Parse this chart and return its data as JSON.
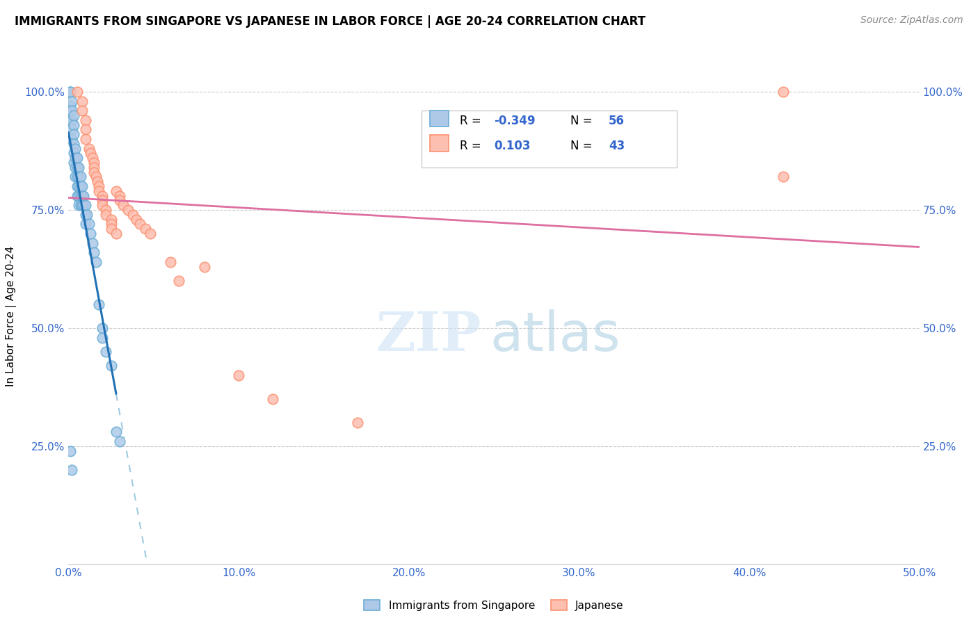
{
  "title": "IMMIGRANTS FROM SINGAPORE VS JAPANESE IN LABOR FORCE | AGE 20-24 CORRELATION CHART",
  "source": "Source: ZipAtlas.com",
  "ylabel": "In Labor Force | Age 20-24",
  "xlim": [
    0.0,
    0.5
  ],
  "ylim": [
    0.0,
    1.05
  ],
  "xtick_labels": [
    "0.0%",
    "10.0%",
    "20.0%",
    "30.0%",
    "40.0%",
    "50.0%"
  ],
  "xtick_values": [
    0.0,
    0.1,
    0.2,
    0.3,
    0.4,
    0.5
  ],
  "ytick_labels": [
    "",
    "25.0%",
    "50.0%",
    "75.0%",
    "100.0%"
  ],
  "ytick_values": [
    0.0,
    0.25,
    0.5,
    0.75,
    1.0
  ],
  "legend_r1_label": "R = ",
  "legend_r1_val": "-0.349",
  "legend_n1_label": "N = ",
  "legend_n1_val": "56",
  "legend_r2_label": "R =  ",
  "legend_r2_val": "0.103",
  "legend_n2_label": "N = ",
  "legend_n2_val": "43",
  "color_sg_edge": "#6baed6",
  "color_sg_fill": "#aec9e8",
  "color_jp_edge": "#fc9272",
  "color_jp_fill": "#fdbfb0",
  "color_sg_line": "#2171b5",
  "color_jp_line": "#de6fa1",
  "color_sg_dash": "#9ecae1",
  "watermark_zip": "ZIP",
  "watermark_atlas": "atlas",
  "sg_x": [
    0.001,
    0.001,
    0.001,
    0.001,
    0.002,
    0.002,
    0.002,
    0.002,
    0.002,
    0.003,
    0.003,
    0.003,
    0.003,
    0.003,
    0.003,
    0.004,
    0.004,
    0.004,
    0.004,
    0.005,
    0.005,
    0.005,
    0.005,
    0.005,
    0.006,
    0.006,
    0.006,
    0.006,
    0.006,
    0.007,
    0.007,
    0.007,
    0.007,
    0.008,
    0.008,
    0.008,
    0.009,
    0.009,
    0.01,
    0.01,
    0.01,
    0.011,
    0.012,
    0.013,
    0.014,
    0.015,
    0.016,
    0.018,
    0.02,
    0.02,
    0.022,
    0.025,
    0.028,
    0.03,
    0.001,
    0.002
  ],
  "sg_y": [
    1.0,
    1.0,
    0.97,
    0.94,
    0.98,
    0.96,
    0.94,
    0.92,
    0.9,
    0.95,
    0.93,
    0.91,
    0.89,
    0.87,
    0.85,
    0.88,
    0.86,
    0.84,
    0.82,
    0.86,
    0.84,
    0.82,
    0.8,
    0.78,
    0.84,
    0.82,
    0.8,
    0.78,
    0.76,
    0.82,
    0.8,
    0.78,
    0.76,
    0.8,
    0.78,
    0.76,
    0.78,
    0.76,
    0.76,
    0.74,
    0.72,
    0.74,
    0.72,
    0.7,
    0.68,
    0.66,
    0.64,
    0.55,
    0.5,
    0.48,
    0.45,
    0.42,
    0.28,
    0.26,
    0.24,
    0.2
  ],
  "jp_x": [
    0.005,
    0.008,
    0.008,
    0.01,
    0.01,
    0.01,
    0.012,
    0.013,
    0.014,
    0.015,
    0.015,
    0.015,
    0.016,
    0.017,
    0.018,
    0.018,
    0.02,
    0.02,
    0.02,
    0.022,
    0.022,
    0.025,
    0.025,
    0.025,
    0.028,
    0.028,
    0.03,
    0.03,
    0.032,
    0.035,
    0.038,
    0.04,
    0.042,
    0.045,
    0.048,
    0.06,
    0.065,
    0.08,
    0.1,
    0.12,
    0.17,
    0.42,
    0.42
  ],
  "jp_y": [
    1.0,
    0.98,
    0.96,
    0.94,
    0.92,
    0.9,
    0.88,
    0.87,
    0.86,
    0.85,
    0.84,
    0.83,
    0.82,
    0.81,
    0.8,
    0.79,
    0.78,
    0.77,
    0.76,
    0.75,
    0.74,
    0.73,
    0.72,
    0.71,
    0.7,
    0.79,
    0.78,
    0.77,
    0.76,
    0.75,
    0.74,
    0.73,
    0.72,
    0.71,
    0.7,
    0.64,
    0.6,
    0.63,
    0.4,
    0.35,
    0.3,
    0.82,
    1.0
  ]
}
